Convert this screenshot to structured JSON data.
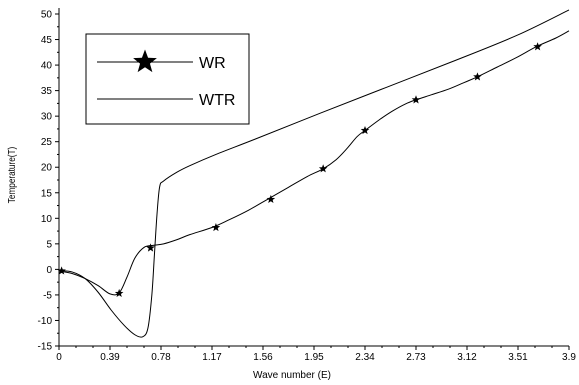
{
  "chart_data": {
    "type": "line",
    "title": "",
    "xlabel": "Wave number (E)",
    "ylabel": "Temperature(T)",
    "xlim": [
      0,
      3.9
    ],
    "ylim": [
      -15,
      50
    ],
    "grid": false,
    "legend_position": "top-left",
    "x_ticks": [
      0,
      0.39,
      0.78,
      1.17,
      1.56,
      1.95,
      2.34,
      2.73,
      3.12,
      3.51,
      3.9
    ],
    "x_tick_labels": [
      "0",
      "0.39",
      "0.78",
      "1.17",
      "1.56",
      "1.95",
      "2.34",
      "2.73",
      "3.12",
      "3.51",
      "3.9"
    ],
    "y_ticks": [
      -15,
      -10,
      -5,
      0,
      5,
      10,
      15,
      20,
      25,
      30,
      35,
      40,
      45,
      50
    ],
    "y_tick_labels": [
      "-15",
      "-10",
      "-5",
      "0",
      "5",
      "10",
      "15",
      "20",
      "25",
      "30",
      "35",
      "40",
      "45",
      "50"
    ],
    "series": [
      {
        "name": "WR",
        "marker": "star",
        "color": "#000000",
        "x": [
          0,
          0.1,
          0.2,
          0.3,
          0.39,
          0.46,
          0.52,
          0.58,
          0.65,
          0.72,
          0.8,
          0.9,
          1.0,
          1.17,
          1.3,
          1.45,
          1.6,
          1.75,
          1.9,
          2.02,
          2.12,
          2.2,
          2.28,
          2.34,
          2.45,
          2.55,
          2.65,
          2.73,
          2.85,
          2.98,
          3.1,
          3.2,
          3.35,
          3.5,
          3.65,
          3.8,
          3.9
        ],
        "y": [
          -0.3,
          -0.8,
          -1.8,
          -3.2,
          -4.8,
          -4.6,
          -1.5,
          2.2,
          4.3,
          4.7,
          5.0,
          5.8,
          6.8,
          8.2,
          9.7,
          11.6,
          13.8,
          16.0,
          18.2,
          19.7,
          21.5,
          23.6,
          26.0,
          27.2,
          29.3,
          31.0,
          32.4,
          33.2,
          34.2,
          35.3,
          36.6,
          37.7,
          39.6,
          41.5,
          43.6,
          45.3,
          46.7
        ],
        "marker_x": [
          0.02,
          0.46,
          0.7,
          1.2,
          1.62,
          2.02,
          2.34,
          2.73,
          3.2,
          3.66
        ],
        "marker_y": [
          -0.3,
          -4.7,
          4.2,
          8.2,
          13.7,
          19.7,
          27.2,
          33.2,
          37.7,
          43.6
        ]
      },
      {
        "name": "WTR",
        "marker": "none",
        "color": "#000000",
        "x": [
          0,
          0.1,
          0.2,
          0.3,
          0.4,
          0.5,
          0.58,
          0.64,
          0.68,
          0.71,
          0.73,
          0.75,
          0.77,
          0.8,
          0.9,
          1.0,
          1.2,
          1.5,
          2.0,
          2.5,
          3.0,
          3.5,
          3.9
        ],
        "y": [
          -0.2,
          -0.5,
          -1.8,
          -4.5,
          -8.0,
          -11.0,
          -12.8,
          -13.2,
          -11.5,
          -5.0,
          3.0,
          11.0,
          16.2,
          17.3,
          19.0,
          20.3,
          22.5,
          25.5,
          30.6,
          35.6,
          40.6,
          45.8,
          50.8
        ]
      }
    ]
  }
}
